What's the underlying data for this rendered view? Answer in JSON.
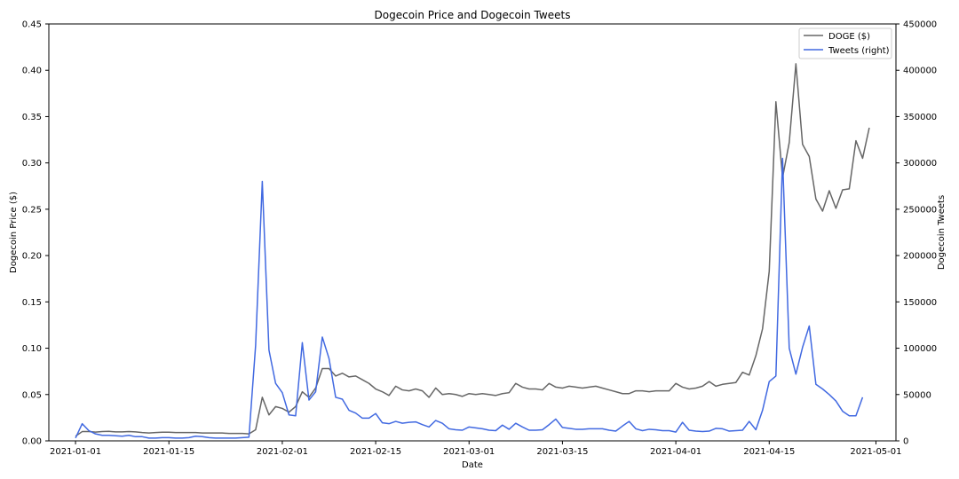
{
  "chart_data": {
    "type": "line",
    "title": "Dogecoin Price and Dogecoin Tweets",
    "xlabel": "Date",
    "ylabel": "Dogecoin Price ($)",
    "y2label": "Dogecoin Tweets",
    "x_ticks": [
      "2021-01-01",
      "2021-01-15",
      "2021-02-01",
      "2021-02-15",
      "2021-03-01",
      "2021-03-15",
      "2021-04-01",
      "2021-04-15",
      "2021-05-01"
    ],
    "ylim": [
      0,
      0.45
    ],
    "y_ticks": [
      "0.00",
      "0.05",
      "0.10",
      "0.15",
      "0.20",
      "0.25",
      "0.30",
      "0.35",
      "0.40",
      "0.45"
    ],
    "y2lim": [
      0,
      450000
    ],
    "y2_ticks": [
      "0",
      "50000",
      "100000",
      "150000",
      "200000",
      "250000",
      "300000",
      "350000",
      "400000",
      "450000"
    ],
    "grid": false,
    "legend_position": "top-right",
    "legend": [
      "DOGE ($)",
      "Tweets (right)"
    ],
    "colors": {
      "doge": "#666666",
      "tweets": "#4169e1"
    },
    "series": [
      {
        "name": "DOGE ($)",
        "axis": "left",
        "points": [
          [
            "2021-01-01",
            0.005
          ],
          [
            "2021-01-02",
            0.01
          ],
          [
            "2021-01-03",
            0.01
          ],
          [
            "2021-01-04",
            0.0095
          ],
          [
            "2021-01-05",
            0.01
          ],
          [
            "2021-01-06",
            0.0103
          ],
          [
            "2021-01-07",
            0.0097
          ],
          [
            "2021-01-08",
            0.0097
          ],
          [
            "2021-01-09",
            0.01
          ],
          [
            "2021-01-10",
            0.0097
          ],
          [
            "2021-01-11",
            0.009
          ],
          [
            "2021-01-12",
            0.0085
          ],
          [
            "2021-01-13",
            0.009
          ],
          [
            "2021-01-14",
            0.0093
          ],
          [
            "2021-01-15",
            0.0093
          ],
          [
            "2021-01-16",
            0.009
          ],
          [
            "2021-01-17",
            0.009
          ],
          [
            "2021-01-18",
            0.009
          ],
          [
            "2021-01-19",
            0.009
          ],
          [
            "2021-01-20",
            0.0085
          ],
          [
            "2021-01-21",
            0.0085
          ],
          [
            "2021-01-22",
            0.0085
          ],
          [
            "2021-01-23",
            0.0085
          ],
          [
            "2021-01-24",
            0.008
          ],
          [
            "2021-01-25",
            0.008
          ],
          [
            "2021-01-26",
            0.008
          ],
          [
            "2021-01-27",
            0.0075
          ],
          [
            "2021-01-28",
            0.012
          ],
          [
            "2021-01-29",
            0.047
          ],
          [
            "2021-01-30",
            0.028
          ],
          [
            "2021-01-31",
            0.037
          ],
          [
            "2021-02-01",
            0.035
          ],
          [
            "2021-02-02",
            0.031
          ],
          [
            "2021-02-03",
            0.037
          ],
          [
            "2021-02-04",
            0.053
          ],
          [
            "2021-02-05",
            0.047
          ],
          [
            "2021-02-06",
            0.057
          ],
          [
            "2021-02-07",
            0.078
          ],
          [
            "2021-02-08",
            0.078
          ],
          [
            "2021-02-09",
            0.07
          ],
          [
            "2021-02-10",
            0.073
          ],
          [
            "2021-02-11",
            0.069
          ],
          [
            "2021-02-12",
            0.07
          ],
          [
            "2021-02-13",
            0.066
          ],
          [
            "2021-02-14",
            0.062
          ],
          [
            "2021-02-15",
            0.056
          ],
          [
            "2021-02-16",
            0.053
          ],
          [
            "2021-02-17",
            0.049
          ],
          [
            "2021-02-18",
            0.059
          ],
          [
            "2021-02-19",
            0.055
          ],
          [
            "2021-02-20",
            0.054
          ],
          [
            "2021-02-21",
            0.056
          ],
          [
            "2021-02-22",
            0.054
          ],
          [
            "2021-02-23",
            0.047
          ],
          [
            "2021-02-24",
            0.057
          ],
          [
            "2021-02-25",
            0.05
          ],
          [
            "2021-02-26",
            0.051
          ],
          [
            "2021-02-27",
            0.05
          ],
          [
            "2021-02-28",
            0.048
          ],
          [
            "2021-03-01",
            0.051
          ],
          [
            "2021-03-02",
            0.05
          ],
          [
            "2021-03-03",
            0.051
          ],
          [
            "2021-03-04",
            0.05
          ],
          [
            "2021-03-05",
            0.049
          ],
          [
            "2021-03-06",
            0.051
          ],
          [
            "2021-03-07",
            0.052
          ],
          [
            "2021-03-08",
            0.062
          ],
          [
            "2021-03-09",
            0.058
          ],
          [
            "2021-03-10",
            0.056
          ],
          [
            "2021-03-11",
            0.056
          ],
          [
            "2021-03-12",
            0.055
          ],
          [
            "2021-03-13",
            0.062
          ],
          [
            "2021-03-14",
            0.058
          ],
          [
            "2021-03-15",
            0.057
          ],
          [
            "2021-03-16",
            0.059
          ],
          [
            "2021-03-17",
            0.058
          ],
          [
            "2021-03-18",
            0.057
          ],
          [
            "2021-03-19",
            0.058
          ],
          [
            "2021-03-20",
            0.059
          ],
          [
            "2021-03-21",
            0.057
          ],
          [
            "2021-03-22",
            0.055
          ],
          [
            "2021-03-23",
            0.053
          ],
          [
            "2021-03-24",
            0.051
          ],
          [
            "2021-03-25",
            0.051
          ],
          [
            "2021-03-26",
            0.054
          ],
          [
            "2021-03-27",
            0.054
          ],
          [
            "2021-03-28",
            0.053
          ],
          [
            "2021-03-29",
            0.054
          ],
          [
            "2021-03-30",
            0.054
          ],
          [
            "2021-03-31",
            0.054
          ],
          [
            "2021-04-01",
            0.062
          ],
          [
            "2021-04-02",
            0.058
          ],
          [
            "2021-04-03",
            0.056
          ],
          [
            "2021-04-04",
            0.057
          ],
          [
            "2021-04-05",
            0.059
          ],
          [
            "2021-04-06",
            0.064
          ],
          [
            "2021-04-07",
            0.059
          ],
          [
            "2021-04-08",
            0.061
          ],
          [
            "2021-04-09",
            0.062
          ],
          [
            "2021-04-10",
            0.063
          ],
          [
            "2021-04-11",
            0.074
          ],
          [
            "2021-04-12",
            0.071
          ],
          [
            "2021-04-13",
            0.092
          ],
          [
            "2021-04-14",
            0.121
          ],
          [
            "2021-04-15",
            0.183
          ],
          [
            "2021-04-16",
            0.366
          ],
          [
            "2021-04-17",
            0.284
          ],
          [
            "2021-04-18",
            0.322
          ],
          [
            "2021-04-19",
            0.407
          ],
          [
            "2021-04-20",
            0.32
          ],
          [
            "2021-04-21",
            0.307
          ],
          [
            "2021-04-22",
            0.261
          ],
          [
            "2021-04-23",
            0.248
          ],
          [
            "2021-04-24",
            0.27
          ],
          [
            "2021-04-25",
            0.251
          ],
          [
            "2021-04-26",
            0.271
          ],
          [
            "2021-04-27",
            0.272
          ],
          [
            "2021-04-28",
            0.324
          ],
          [
            "2021-04-29",
            0.305
          ],
          [
            "2021-04-30",
            0.338
          ]
        ]
      },
      {
        "name": "Tweets (right)",
        "axis": "right",
        "points": [
          [
            "2021-01-01",
            3000
          ],
          [
            "2021-01-02",
            18500
          ],
          [
            "2021-01-03",
            11000
          ],
          [
            "2021-01-04",
            7500
          ],
          [
            "2021-01-05",
            6000
          ],
          [
            "2021-01-06",
            6000
          ],
          [
            "2021-01-07",
            5500
          ],
          [
            "2021-01-08",
            5000
          ],
          [
            "2021-01-09",
            6000
          ],
          [
            "2021-01-10",
            4500
          ],
          [
            "2021-01-11",
            4500
          ],
          [
            "2021-01-12",
            3000
          ],
          [
            "2021-01-13",
            3000
          ],
          [
            "2021-01-14",
            3500
          ],
          [
            "2021-01-15",
            3500
          ],
          [
            "2021-01-16",
            3000
          ],
          [
            "2021-01-17",
            3000
          ],
          [
            "2021-01-18",
            3500
          ],
          [
            "2021-01-19",
            5000
          ],
          [
            "2021-01-20",
            4500
          ],
          [
            "2021-01-21",
            3500
          ],
          [
            "2021-01-22",
            3000
          ],
          [
            "2021-01-23",
            3000
          ],
          [
            "2021-01-24",
            3000
          ],
          [
            "2021-01-25",
            3000
          ],
          [
            "2021-01-26",
            3500
          ],
          [
            "2021-01-27",
            4000
          ],
          [
            "2021-01-28",
            103000
          ],
          [
            "2021-01-29",
            280000
          ],
          [
            "2021-01-30",
            98000
          ],
          [
            "2021-01-31",
            62000
          ],
          [
            "2021-02-01",
            52000
          ],
          [
            "2021-02-02",
            28000
          ],
          [
            "2021-02-03",
            27000
          ],
          [
            "2021-02-04",
            106000
          ],
          [
            "2021-02-05",
            44000
          ],
          [
            "2021-02-06",
            53000
          ],
          [
            "2021-02-07",
            112000
          ],
          [
            "2021-02-08",
            89000
          ],
          [
            "2021-02-09",
            47000
          ],
          [
            "2021-02-10",
            45000
          ],
          [
            "2021-02-11",
            33000
          ],
          [
            "2021-02-12",
            30000
          ],
          [
            "2021-02-13",
            24500
          ],
          [
            "2021-02-14",
            24500
          ],
          [
            "2021-02-15",
            29500
          ],
          [
            "2021-02-16",
            19500
          ],
          [
            "2021-02-17",
            18500
          ],
          [
            "2021-02-18",
            21000
          ],
          [
            "2021-02-19",
            19000
          ],
          [
            "2021-02-20",
            20000
          ],
          [
            "2021-02-21",
            20500
          ],
          [
            "2021-02-22",
            17500
          ],
          [
            "2021-02-23",
            15000
          ],
          [
            "2021-02-24",
            22000
          ],
          [
            "2021-02-25",
            19000
          ],
          [
            "2021-02-26",
            13000
          ],
          [
            "2021-02-27",
            12000
          ],
          [
            "2021-02-28",
            11500
          ],
          [
            "2021-03-01",
            15000
          ],
          [
            "2021-03-02",
            14000
          ],
          [
            "2021-03-03",
            13000
          ],
          [
            "2021-03-04",
            11500
          ],
          [
            "2021-03-05",
            11000
          ],
          [
            "2021-03-06",
            17000
          ],
          [
            "2021-03-07",
            12500
          ],
          [
            "2021-03-08",
            19000
          ],
          [
            "2021-03-09",
            15000
          ],
          [
            "2021-03-10",
            11500
          ],
          [
            "2021-03-11",
            11500
          ],
          [
            "2021-03-12",
            12000
          ],
          [
            "2021-03-13",
            17500
          ],
          [
            "2021-03-14",
            23500
          ],
          [
            "2021-03-15",
            14500
          ],
          [
            "2021-03-16",
            13500
          ],
          [
            "2021-03-17",
            12500
          ],
          [
            "2021-03-18",
            12500
          ],
          [
            "2021-03-19",
            13000
          ],
          [
            "2021-03-20",
            13000
          ],
          [
            "2021-03-21",
            13000
          ],
          [
            "2021-03-22",
            11500
          ],
          [
            "2021-03-23",
            10500
          ],
          [
            "2021-03-24",
            16000
          ],
          [
            "2021-03-25",
            21000
          ],
          [
            "2021-03-26",
            13000
          ],
          [
            "2021-03-27",
            11000
          ],
          [
            "2021-03-28",
            12500
          ],
          [
            "2021-03-29",
            12000
          ],
          [
            "2021-03-30",
            11000
          ],
          [
            "2021-03-31",
            11000
          ],
          [
            "2021-04-01",
            9500
          ],
          [
            "2021-04-02",
            20000
          ],
          [
            "2021-04-03",
            11500
          ],
          [
            "2021-04-04",
            10500
          ],
          [
            "2021-04-05",
            10000
          ],
          [
            "2021-04-06",
            10500
          ],
          [
            "2021-04-07",
            13500
          ],
          [
            "2021-04-08",
            13000
          ],
          [
            "2021-04-09",
            10500
          ],
          [
            "2021-04-10",
            11000
          ],
          [
            "2021-04-11",
            11500
          ],
          [
            "2021-04-12",
            21000
          ],
          [
            "2021-04-13",
            12000
          ],
          [
            "2021-04-14",
            33000
          ],
          [
            "2021-04-15",
            64000
          ],
          [
            "2021-04-16",
            70000
          ],
          [
            "2021-04-17",
            305000
          ],
          [
            "2021-04-18",
            100000
          ],
          [
            "2021-04-19",
            72000
          ],
          [
            "2021-04-20",
            101000
          ],
          [
            "2021-04-21",
            124000
          ],
          [
            "2021-04-22",
            61000
          ],
          [
            "2021-04-23",
            56000
          ],
          [
            "2021-04-24",
            50000
          ],
          [
            "2021-04-25",
            43000
          ],
          [
            "2021-04-26",
            32000
          ],
          [
            "2021-04-27",
            27000
          ],
          [
            "2021-04-28",
            27000
          ],
          [
            "2021-04-29",
            47000
          ]
        ]
      }
    ]
  }
}
